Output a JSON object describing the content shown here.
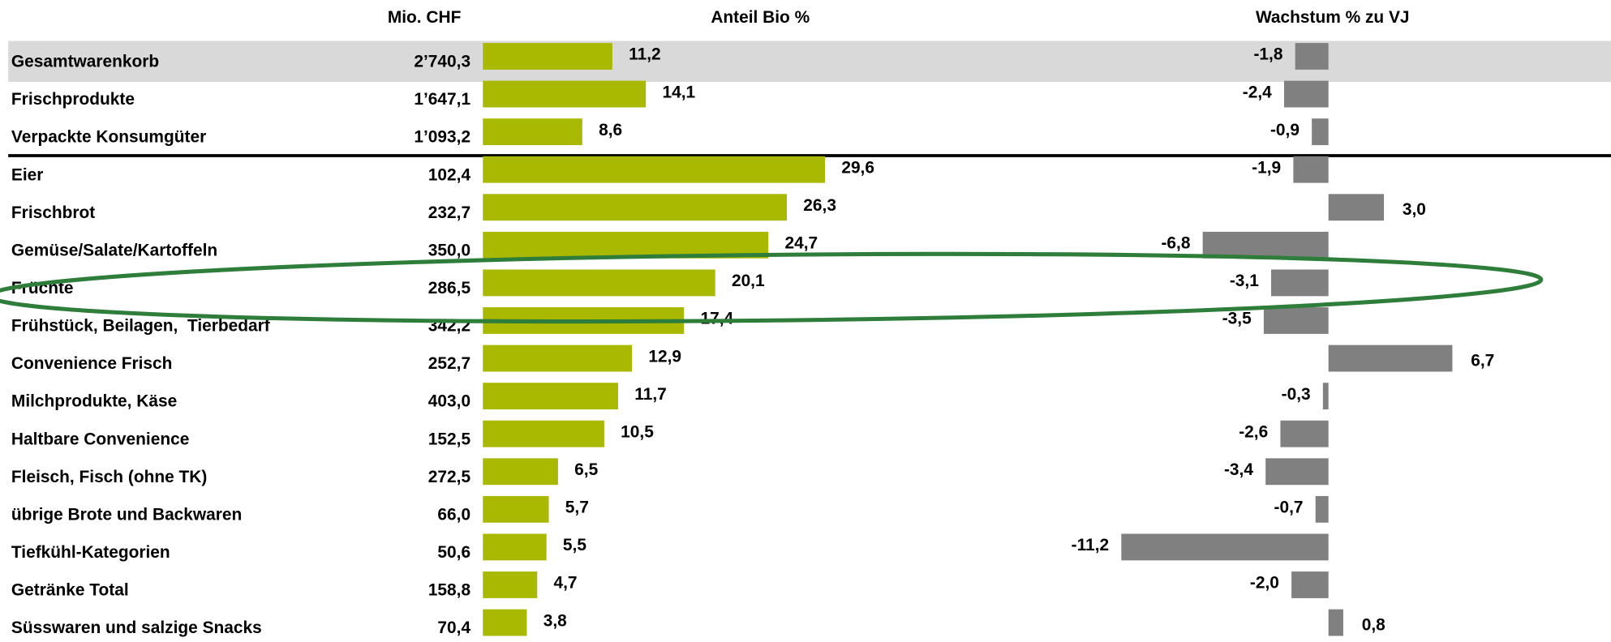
{
  "chart_data": {
    "type": "table-bar",
    "categories": [
      "Gesamtwarenkorb",
      "Frischprodukte",
      "Verpackte Konsumgüter",
      "Eier",
      "Frischbrot",
      "Gemüse/Salate/Kartoffeln",
      "Früchte",
      "Frühstück, Beilagen,  Tierbedarf",
      "Convenience Frisch",
      "Milchprodukte, Käse",
      "Haltbare Convenience",
      "Fleisch, Fisch (ohne TK)",
      "übrige Brote und Backwaren",
      "Tiefkühl-Kategorien",
      "Getränke Total",
      "Süsswaren und salzige Snacks"
    ],
    "series": [
      {
        "name": "Mio. CHF",
        "values": [
          2740.3,
          1647.1,
          1093.2,
          102.4,
          232.7,
          350.0,
          286.5,
          342.2,
          252.7,
          403.0,
          152.5,
          272.5,
          66.0,
          50.6,
          158.8,
          70.4
        ],
        "value_labels": [
          "2’740,3",
          "1’647,1",
          "1’093,2",
          "102,4",
          "232,7",
          "350,0",
          "286,5",
          "342,2",
          "252,7",
          "403,0",
          "152,5",
          "272,5",
          "66,0",
          "50,6",
          "158,8",
          "70,4"
        ]
      },
      {
        "name": "Anteil Bio %",
        "color": "#a9b800",
        "values": [
          11.2,
          14.1,
          8.6,
          29.6,
          26.3,
          24.7,
          20.1,
          17.4,
          12.9,
          11.7,
          10.5,
          6.5,
          5.7,
          5.5,
          4.7,
          3.8
        ],
        "value_labels": [
          "11,2",
          "14,1",
          "8,6",
          "29,6",
          "26,3",
          "24,7",
          "20,1",
          "17,4",
          "12,9",
          "11,7",
          "10,5",
          "6,5",
          "5,7",
          "5,5",
          "4,7",
          "3,8"
        ]
      },
      {
        "name": "Wachstum % zu VJ",
        "color": "#808080",
        "values": [
          -1.8,
          -2.4,
          -0.9,
          -1.9,
          3.0,
          -6.8,
          -3.1,
          -3.5,
          6.7,
          -0.3,
          -2.6,
          -3.4,
          -0.7,
          -11.2,
          -2.0,
          0.8
        ],
        "value_labels": [
          "-1,8",
          "-2,4",
          "-0,9",
          "-1,9",
          "3,0",
          "-6,8",
          "-3,1",
          "-3,5",
          "6,7",
          "-0,3",
          "-2,6",
          "-3,4",
          "-0,7",
          "-11,2",
          "-2,0",
          "0,8"
        ]
      }
    ]
  }
}
